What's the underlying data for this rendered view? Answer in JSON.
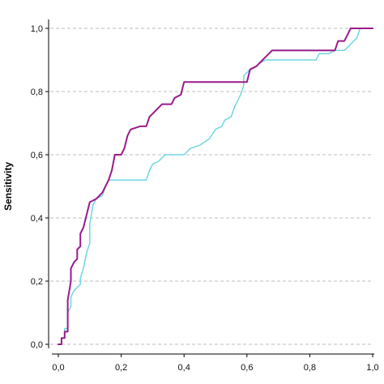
{
  "chart_data": {
    "type": "line",
    "title": "",
    "xlabel": "",
    "ylabel": "Sensitivity",
    "xlim": [
      0,
      1
    ],
    "ylim": [
      0,
      1
    ],
    "grid": "horizontal-dashed",
    "xticks": [
      {
        "value": 0.0,
        "label": "0,0"
      },
      {
        "value": 0.2,
        "label": "0,2"
      },
      {
        "value": 0.4,
        "label": "0,4"
      },
      {
        "value": 0.6,
        "label": "0,6"
      },
      {
        "value": 0.8,
        "label": "0,8"
      },
      {
        "value": 1.0,
        "label": "1,0"
      }
    ],
    "yticks": [
      {
        "value": 0.0,
        "label": "0,0"
      },
      {
        "value": 0.2,
        "label": "0,2"
      },
      {
        "value": 0.4,
        "label": "0,4"
      },
      {
        "value": 0.6,
        "label": "0,6"
      },
      {
        "value": 0.8,
        "label": "0,8"
      },
      {
        "value": 1.0,
        "label": "1,0"
      }
    ],
    "series": [
      {
        "color": "#6fd6e0",
        "points": [
          [
            0.0,
            0.0
          ],
          [
            0.01,
            0.0
          ],
          [
            0.01,
            0.02
          ],
          [
            0.02,
            0.02
          ],
          [
            0.02,
            0.05
          ],
          [
            0.03,
            0.05
          ],
          [
            0.03,
            0.1
          ],
          [
            0.04,
            0.12
          ],
          [
            0.04,
            0.15
          ],
          [
            0.05,
            0.17
          ],
          [
            0.06,
            0.18
          ],
          [
            0.07,
            0.19
          ],
          [
            0.07,
            0.21
          ],
          [
            0.08,
            0.24
          ],
          [
            0.09,
            0.29
          ],
          [
            0.1,
            0.32
          ],
          [
            0.1,
            0.38
          ],
          [
            0.11,
            0.44
          ],
          [
            0.12,
            0.46
          ],
          [
            0.14,
            0.47
          ],
          [
            0.15,
            0.5
          ],
          [
            0.16,
            0.52
          ],
          [
            0.28,
            0.52
          ],
          [
            0.29,
            0.55
          ],
          [
            0.3,
            0.57
          ],
          [
            0.32,
            0.58
          ],
          [
            0.33,
            0.59
          ],
          [
            0.34,
            0.6
          ],
          [
            0.4,
            0.6
          ],
          [
            0.42,
            0.62
          ],
          [
            0.45,
            0.63
          ],
          [
            0.48,
            0.65
          ],
          [
            0.5,
            0.68
          ],
          [
            0.52,
            0.69
          ],
          [
            0.53,
            0.71
          ],
          [
            0.55,
            0.72
          ],
          [
            0.56,
            0.75
          ],
          [
            0.57,
            0.77
          ],
          [
            0.58,
            0.79
          ],
          [
            0.59,
            0.82
          ],
          [
            0.59,
            0.85
          ],
          [
            0.61,
            0.87
          ],
          [
            0.63,
            0.88
          ],
          [
            0.64,
            0.89
          ],
          [
            0.66,
            0.9
          ],
          [
            0.82,
            0.9
          ],
          [
            0.83,
            0.92
          ],
          [
            0.86,
            0.92
          ],
          [
            0.88,
            0.93
          ],
          [
            0.91,
            0.93
          ],
          [
            0.93,
            0.95
          ],
          [
            0.95,
            0.97
          ],
          [
            0.96,
            1.0
          ],
          [
            1.0,
            1.0
          ]
        ]
      },
      {
        "color": "#9a1a8c",
        "points": [
          [
            0.0,
            0.0
          ],
          [
            0.01,
            0.0
          ],
          [
            0.01,
            0.02
          ],
          [
            0.02,
            0.02
          ],
          [
            0.02,
            0.04
          ],
          [
            0.03,
            0.04
          ],
          [
            0.03,
            0.1
          ],
          [
            0.03,
            0.14
          ],
          [
            0.04,
            0.2
          ],
          [
            0.04,
            0.24
          ],
          [
            0.05,
            0.26
          ],
          [
            0.06,
            0.27
          ],
          [
            0.06,
            0.3
          ],
          [
            0.07,
            0.31
          ],
          [
            0.07,
            0.35
          ],
          [
            0.08,
            0.37
          ],
          [
            0.09,
            0.41
          ],
          [
            0.1,
            0.45
          ],
          [
            0.12,
            0.46
          ],
          [
            0.14,
            0.48
          ],
          [
            0.15,
            0.5
          ],
          [
            0.16,
            0.52
          ],
          [
            0.17,
            0.55
          ],
          [
            0.18,
            0.6
          ],
          [
            0.2,
            0.6
          ],
          [
            0.21,
            0.62
          ],
          [
            0.22,
            0.66
          ],
          [
            0.23,
            0.68
          ],
          [
            0.26,
            0.69
          ],
          [
            0.28,
            0.69
          ],
          [
            0.29,
            0.72
          ],
          [
            0.31,
            0.74
          ],
          [
            0.33,
            0.76
          ],
          [
            0.36,
            0.76
          ],
          [
            0.37,
            0.78
          ],
          [
            0.39,
            0.79
          ],
          [
            0.4,
            0.83
          ],
          [
            0.6,
            0.83
          ],
          [
            0.61,
            0.87
          ],
          [
            0.63,
            0.88
          ],
          [
            0.65,
            0.9
          ],
          [
            0.66,
            0.91
          ],
          [
            0.68,
            0.93
          ],
          [
            0.88,
            0.93
          ],
          [
            0.89,
            0.96
          ],
          [
            0.91,
            0.96
          ],
          [
            0.92,
            0.98
          ],
          [
            0.93,
            1.0
          ],
          [
            1.0,
            1.0
          ]
        ]
      }
    ]
  }
}
